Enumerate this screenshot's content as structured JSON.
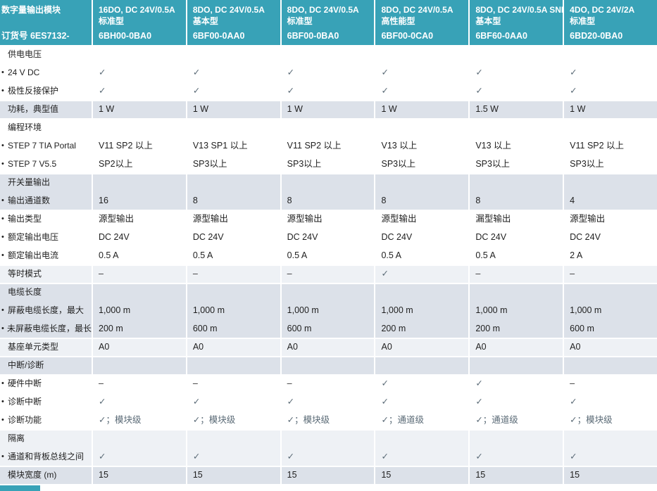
{
  "colors": {
    "header_teal": "#38a2b7",
    "band_medium": "#dce1e9",
    "band_light": "#eef1f5",
    "check_color": "#5a6a76"
  },
  "table": {
    "bullet_glyph": "•",
    "corner": {
      "title": "数字量输出模块",
      "order_label": "订货号  6ES7132-"
    },
    "columns": [
      {
        "title": "16DO, DC 24V/0.5A",
        "variant": "标准型",
        "code": "6BH00-0BA0"
      },
      {
        "title": "8DO, DC 24V/0.5A",
        "variant": "基本型",
        "code": "6BF00-0AA0"
      },
      {
        "title": "8DO, DC 24V/0.5A",
        "variant": "标准型",
        "code": "6BF00-0BA0"
      },
      {
        "title": "8DO, DC 24V/0.5A",
        "variant": "高性能型",
        "code": "6BF00-0CA0"
      },
      {
        "title": "8DO, DC 24V/0.5A SNK",
        "variant": "基本型",
        "code": "6BF60-0AA0"
      },
      {
        "title": "4DO, DC 24V/2A",
        "variant": "标准型",
        "code": "6BD20-0BA0"
      }
    ],
    "rows": [
      {
        "label": "供电电压",
        "bullet": false,
        "shade": "a",
        "cells": [
          "",
          "",
          "",
          "",
          "",
          ""
        ]
      },
      {
        "label": "24 V DC",
        "bullet": true,
        "shade": "a",
        "cells": [
          "✓",
          "✓",
          "✓",
          "✓",
          "✓",
          "✓"
        ]
      },
      {
        "label": "极性反接保护",
        "bullet": true,
        "shade": "a",
        "cells": [
          "✓",
          "✓",
          "✓",
          "✓",
          "✓",
          "✓"
        ]
      },
      {
        "label": "功耗，典型值",
        "bullet": false,
        "shade": "b",
        "cells": [
          "1 W",
          "1 W",
          "1 W",
          "1 W",
          "1.5 W",
          "1 W"
        ]
      },
      {
        "label": "编程环境",
        "bullet": false,
        "shade": "a",
        "cells": [
          "",
          "",
          "",
          "",
          "",
          ""
        ]
      },
      {
        "label": "STEP 7 TIA Portal",
        "bullet": true,
        "shade": "a",
        "cells": [
          "V11 SP2 以上",
          "V13 SP1 以上",
          "V11 SP2 以上",
          "V13 以上",
          "V13 以上",
          "V11 SP2 以上"
        ]
      },
      {
        "label": "STEP 7 V5.5",
        "bullet": true,
        "shade": "a",
        "cells": [
          "SP2以上",
          "SP3以上",
          "SP3以上",
          "SP3以上",
          "SP3以上",
          "SP3以上"
        ]
      },
      {
        "label": "开关量输出",
        "bullet": false,
        "shade": "b",
        "cells": [
          "",
          "",
          "",
          "",
          "",
          ""
        ]
      },
      {
        "label": "输出通道数",
        "bullet": true,
        "shade": "b",
        "cells": [
          "16",
          "8",
          "8",
          "8",
          "8",
          "4"
        ]
      },
      {
        "label": "输出类型",
        "bullet": true,
        "shade": "a",
        "cells": [
          "源型输出",
          "源型输出",
          "源型输出",
          "源型输出",
          "漏型输出",
          "源型输出"
        ]
      },
      {
        "label": "额定输出电压",
        "bullet": true,
        "shade": "a",
        "cells": [
          "DC 24V",
          "DC 24V",
          "DC 24V",
          "DC 24V",
          "DC 24V",
          "DC 24V"
        ]
      },
      {
        "label": "额定输出电流",
        "bullet": true,
        "shade": "a",
        "cells": [
          "0.5 A",
          "0.5 A",
          "0.5 A",
          "0.5 A",
          "0.5 A",
          "2 A"
        ]
      },
      {
        "label": "等时模式",
        "bullet": false,
        "shade": "c",
        "cells": [
          "–",
          "–",
          "–",
          "✓",
          "–",
          "–"
        ]
      },
      {
        "label": "电缆长度",
        "bullet": false,
        "shade": "b",
        "cells": [
          "",
          "",
          "",
          "",
          "",
          ""
        ]
      },
      {
        "label": "屏蔽电缆长度，最大",
        "bullet": true,
        "shade": "b",
        "cells": [
          "1,000 m",
          "1,000 m",
          "1,000 m",
          "1,000 m",
          "1,000 m",
          "1,000 m"
        ]
      },
      {
        "label": "未屏蔽电缆长度，最长",
        "bullet": true,
        "shade": "b",
        "cells": [
          "200 m",
          "600 m",
          "600 m",
          "200 m",
          "200 m",
          "600 m"
        ]
      },
      {
        "label": "基座单元类型",
        "bullet": false,
        "shade": "c",
        "cells": [
          "A0",
          "A0",
          "A0",
          "A0",
          "A0",
          "A0"
        ]
      },
      {
        "label": "中断/诊断",
        "bullet": false,
        "shade": "b",
        "cells": [
          "",
          "",
          "",
          "",
          "",
          ""
        ]
      },
      {
        "label": "硬件中断",
        "bullet": true,
        "shade": "a",
        "cells": [
          "–",
          "–",
          "–",
          "✓",
          "✓",
          "–"
        ]
      },
      {
        "label": "诊断中断",
        "bullet": true,
        "shade": "a",
        "cells": [
          "✓",
          "✓",
          "✓",
          "✓",
          "✓",
          "✓"
        ]
      },
      {
        "label": "诊断功能",
        "bullet": true,
        "shade": "a",
        "cells": [
          "✓；模块级",
          "✓；模块级",
          "✓；模块级",
          "✓；通道级",
          "✓；通道级",
          "✓；模块级"
        ]
      },
      {
        "label": "隔离",
        "bullet": false,
        "shade": "c",
        "cells": [
          "",
          "",
          "",
          "",
          "",
          ""
        ]
      },
      {
        "label": "通道和背板总线之间",
        "bullet": true,
        "shade": "c",
        "cells": [
          "✓",
          "✓",
          "✓",
          "✓",
          "✓",
          "✓"
        ]
      },
      {
        "label": "模块宽度 (m)",
        "bullet": false,
        "shade": "b",
        "cells": [
          "15",
          "15",
          "15",
          "15",
          "15",
          "15"
        ]
      }
    ]
  }
}
